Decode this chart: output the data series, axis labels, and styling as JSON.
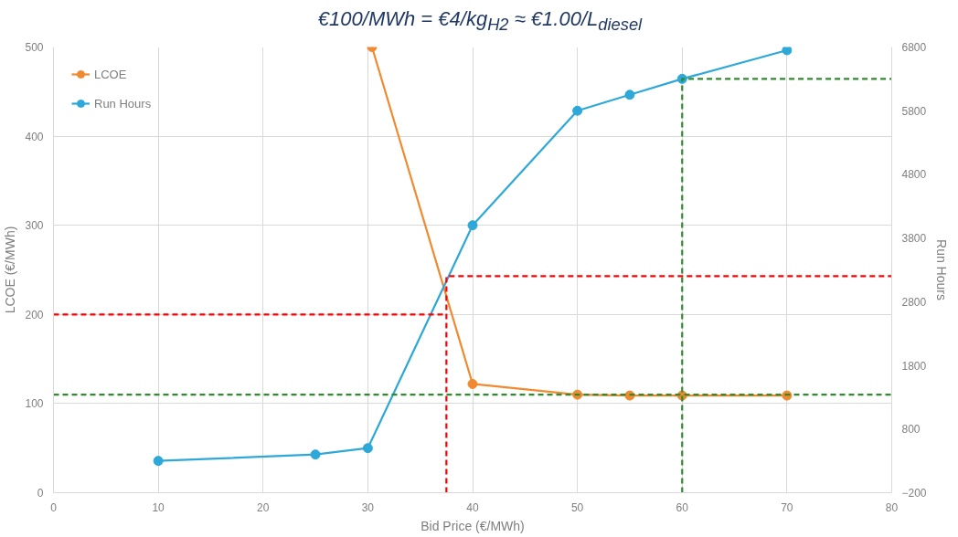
{
  "chart_data": {
    "type": "line",
    "title": "€100/MWh = €4/kg$_{H2}$ ≈ €1.00/L$_{diesel}$",
    "xlabel": "Bid Price (€/MWh)",
    "ylabel": "LCOE (€/MWh)",
    "y2label": "Run Hours",
    "xlim": [
      0,
      80
    ],
    "xticks": [
      0,
      10,
      20,
      30,
      40,
      50,
      60,
      70,
      80
    ],
    "ylim": [
      0,
      500
    ],
    "yticks": [
      0,
      100,
      200,
      300,
      400,
      500
    ],
    "y2lim": [
      -200,
      6800
    ],
    "y2ticks": [
      -200,
      800,
      1800,
      2800,
      3800,
      4800,
      5800,
      6800
    ],
    "grid": true,
    "legend": "top left",
    "marker": "circle",
    "line_style": "solid",
    "series": [
      {
        "name": "LCOE",
        "color": "#f08a30",
        "x": [
          30.4,
          40,
          50,
          55,
          60,
          70
        ],
        "values": [
          500,
          122,
          110,
          109,
          109,
          109
        ]
      },
      {
        "name": "Run Hours",
        "color": "#2ea8d8",
        "axis": "y2",
        "x": [
          10,
          25,
          30,
          40,
          50,
          55,
          60,
          70
        ],
        "values": [
          300,
          400,
          500,
          4000,
          5800,
          6050,
          6300,
          6750
        ]
      },
      {
        "color": "#ff0000",
        "x": [
          0,
          37.5
        ],
        "values": [
          200,
          200
        ],
        "marker": "none",
        "line_style": "dashed"
      },
      {
        "color": "#ff0000",
        "axis": "y2",
        "x": [
          37.5,
          37.5,
          80
        ],
        "values": [
          -200,
          3200,
          3200
        ],
        "marker": "none",
        "line_style": "dashed"
      },
      {
        "color": "#2e8b2e",
        "x": [
          0,
          80
        ],
        "values": [
          110,
          110
        ],
        "marker": "none",
        "line_style": "dashed"
      },
      {
        "color": "#2e8b2e",
        "axis": "y2",
        "x": [
          60,
          60,
          80
        ],
        "values": [
          -200,
          6300,
          6300
        ],
        "marker": "none",
        "line_style": "dashed"
      }
    ]
  }
}
